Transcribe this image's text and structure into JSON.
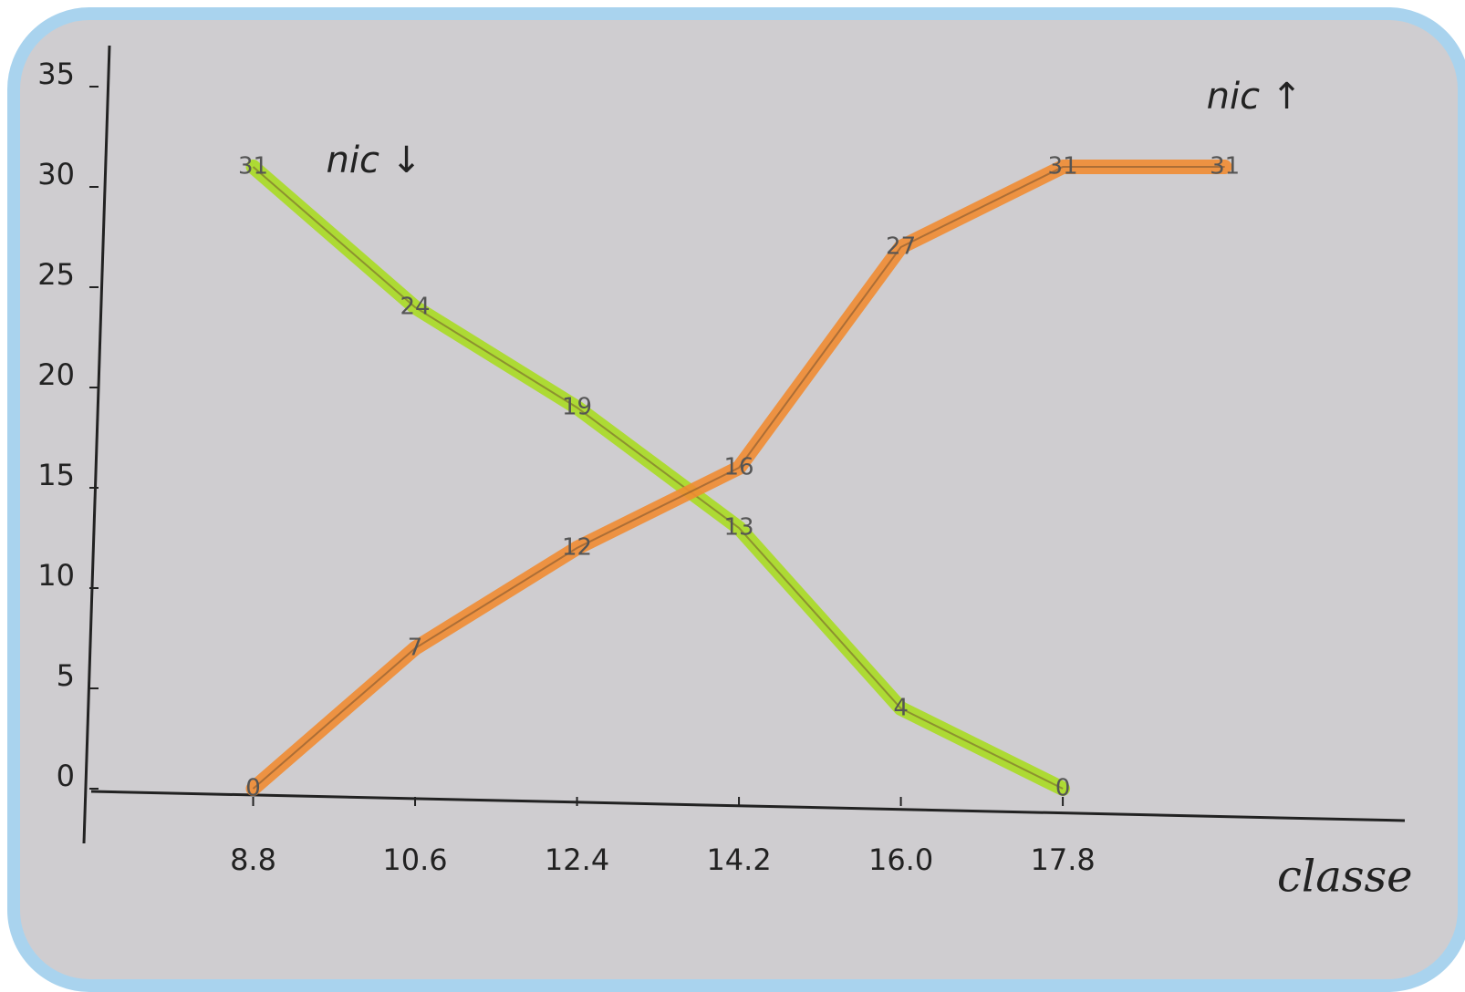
{
  "chart_data": {
    "type": "line",
    "x": [
      8.8,
      10.6,
      12.4,
      14.2,
      16.0,
      17.8,
      19.6
    ],
    "series": [
      {
        "name": "nic ↓",
        "color": "#a9dc22",
        "values": [
          31,
          24,
          19,
          13,
          4,
          0,
          null
        ]
      },
      {
        "name": "nic ↑",
        "color": "#f08c32",
        "values": [
          0,
          7,
          12,
          16,
          27,
          31,
          31
        ]
      }
    ],
    "xlabel": "classe",
    "xlim": [
      7,
      21.5
    ],
    "ylim": [
      -1.5,
      36.5
    ],
    "xticks": [
      8.8,
      10.6,
      12.4,
      14.2,
      {
        "value": 16.0,
        "label": "16.0"
      },
      17.8
    ],
    "yticks": [
      0,
      5,
      10,
      15,
      20,
      25,
      30,
      35
    ]
  }
}
